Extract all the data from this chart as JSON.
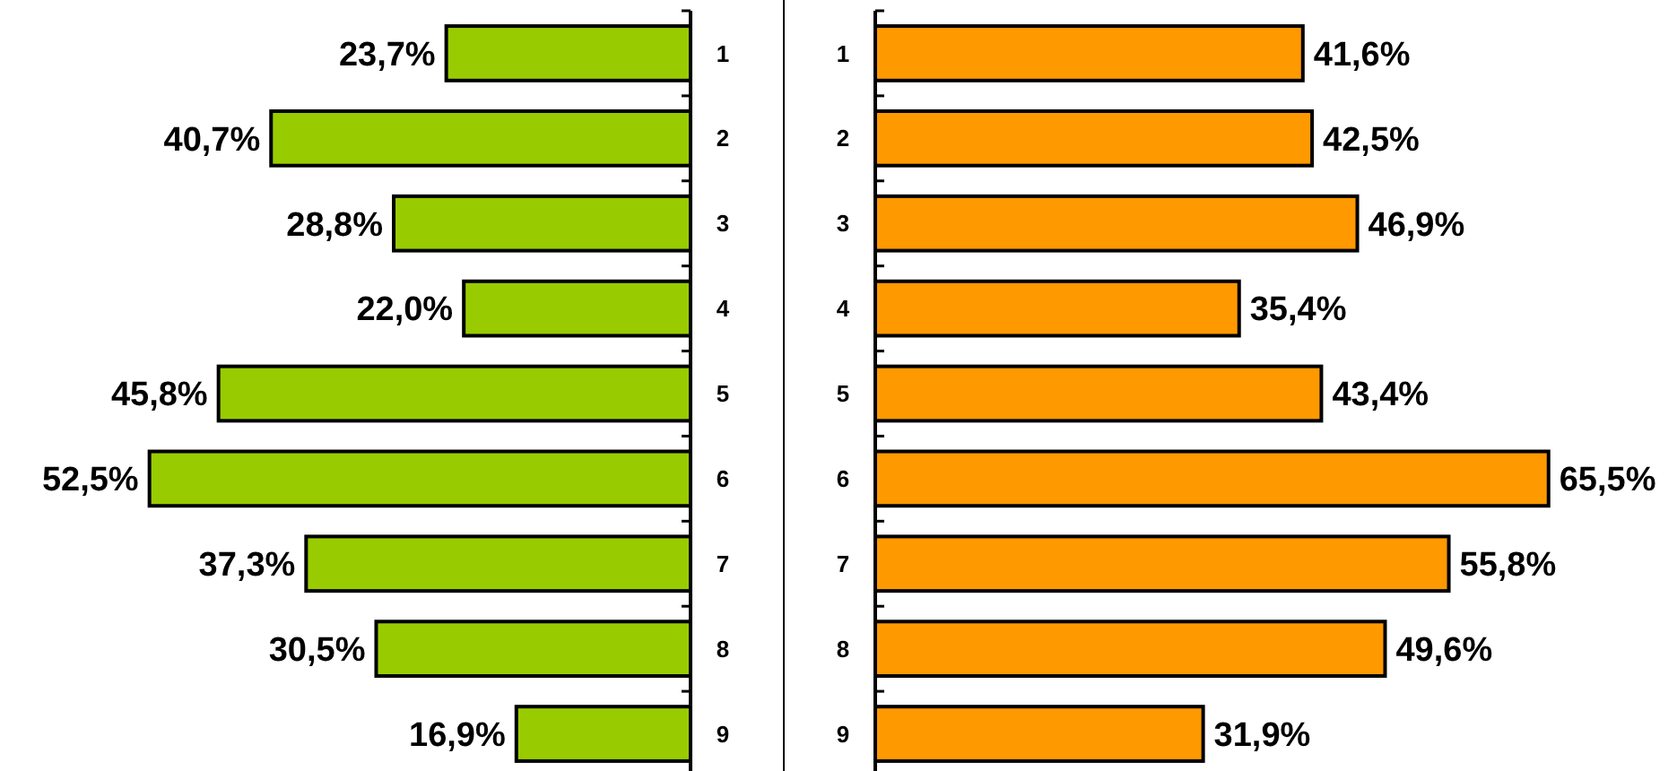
{
  "chart_data": [
    {
      "type": "bar",
      "orientation": "horizontal",
      "categories": [
        "1",
        "2",
        "3",
        "4",
        "5",
        "6",
        "7",
        "8",
        "9"
      ],
      "values": [
        23.7,
        40.7,
        28.8,
        22.0,
        45.8,
        52.5,
        37.3,
        30.5,
        16.9
      ],
      "value_labels": [
        "23,7%",
        "40,7%",
        "28,8%",
        "22,0%",
        "45,8%",
        "52,5%",
        "37,3%",
        "30,5%",
        "16,9%"
      ],
      "color": "#99cc00",
      "xlim": [
        67,
        0
      ],
      "tick_labels": "y"
    },
    {
      "type": "bar",
      "orientation": "horizontal",
      "categories": [
        "1",
        "2",
        "3",
        "4",
        "5",
        "6",
        "7",
        "8",
        "9"
      ],
      "values": [
        41.6,
        42.5,
        46.9,
        35.4,
        43.4,
        65.5,
        55.8,
        49.6,
        31.9
      ],
      "value_labels": [
        "41,6%",
        "42,5%",
        "46,9%",
        "35,4%",
        "43,4%",
        "65,5%",
        "55,8%",
        "49,6%",
        "31,9%"
      ],
      "color": "#ff9900",
      "xlim": [
        0,
        78
      ],
      "tick_labels": "y"
    }
  ]
}
